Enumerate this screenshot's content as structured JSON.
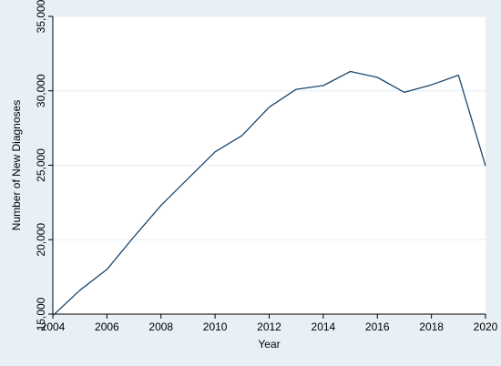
{
  "colors": {
    "figure_background": "#e8f0f6",
    "plot_background": "#ffffff",
    "line": "#1a476f",
    "gridline": "#e6edf2",
    "axis": "#000000"
  },
  "chart_data": {
    "type": "line",
    "title": "",
    "xlabel": "Year",
    "ylabel": "Number of New Diagnoses",
    "xlim": [
      2004,
      2020
    ],
    "ylim": [
      15000,
      35000
    ],
    "x_ticks": [
      2004,
      2006,
      2008,
      2010,
      2012,
      2014,
      2016,
      2018,
      2020
    ],
    "x_tick_labels": [
      "2004",
      "2006",
      "2008",
      "2010",
      "2012",
      "2014",
      "2016",
      "2018",
      "2020"
    ],
    "y_ticks": [
      15000,
      20000,
      25000,
      30000,
      35000
    ],
    "y_tick_labels": [
      "15,000",
      "20,000",
      "25,000",
      "30,000",
      "35,000"
    ],
    "grid": "horizontal",
    "legend": "none",
    "x": [
      2004,
      2005,
      2006,
      2007,
      2008,
      2009,
      2010,
      2011,
      2012,
      2013,
      2014,
      2015,
      2016,
      2017,
      2018,
      2019,
      2020
    ],
    "series": [
      {
        "values": [
          14900,
          16600,
          18000,
          20200,
          22300,
          24100,
          25900,
          27000,
          28900,
          30100,
          30350,
          31300,
          30900,
          29900,
          30400,
          31050,
          24950
        ]
      }
    ]
  }
}
